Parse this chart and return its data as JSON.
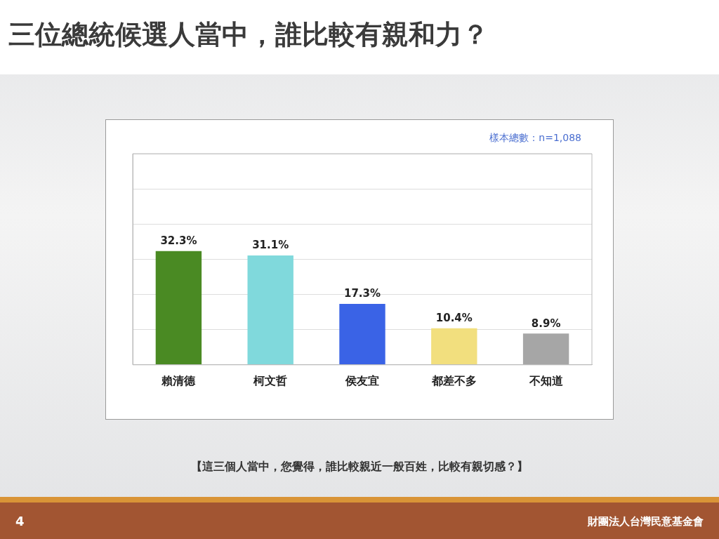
{
  "chart_data": {
    "type": "bar",
    "title": "三位總統候選人當中，誰比較有親和力？",
    "categories": [
      "賴清德",
      "柯文哲",
      "侯友宜",
      "都差不多",
      "不知道"
    ],
    "values": [
      32.3,
      31.1,
      17.3,
      10.4,
      8.9
    ],
    "value_labels": [
      "32.3%",
      "31.1%",
      "17.3%",
      "10.4%",
      "8.9%"
    ],
    "colors": [
      "#4a8a23",
      "#80d9dc",
      "#3a63e6",
      "#f2df7e",
      "#a6a6a6"
    ],
    "ylim": [
      0,
      60
    ],
    "yticks": [
      0,
      10,
      20,
      30,
      40,
      50,
      60
    ],
    "grid": "y",
    "tick_labels": "x",
    "legend": false,
    "annotations": [
      "樣本總數：n=1,088",
      "【這三個人當中，您覺得，誰比較親近一般百姓，比較有親切感？】",
      "4",
      "財團法人台灣民意基金會"
    ]
  }
}
